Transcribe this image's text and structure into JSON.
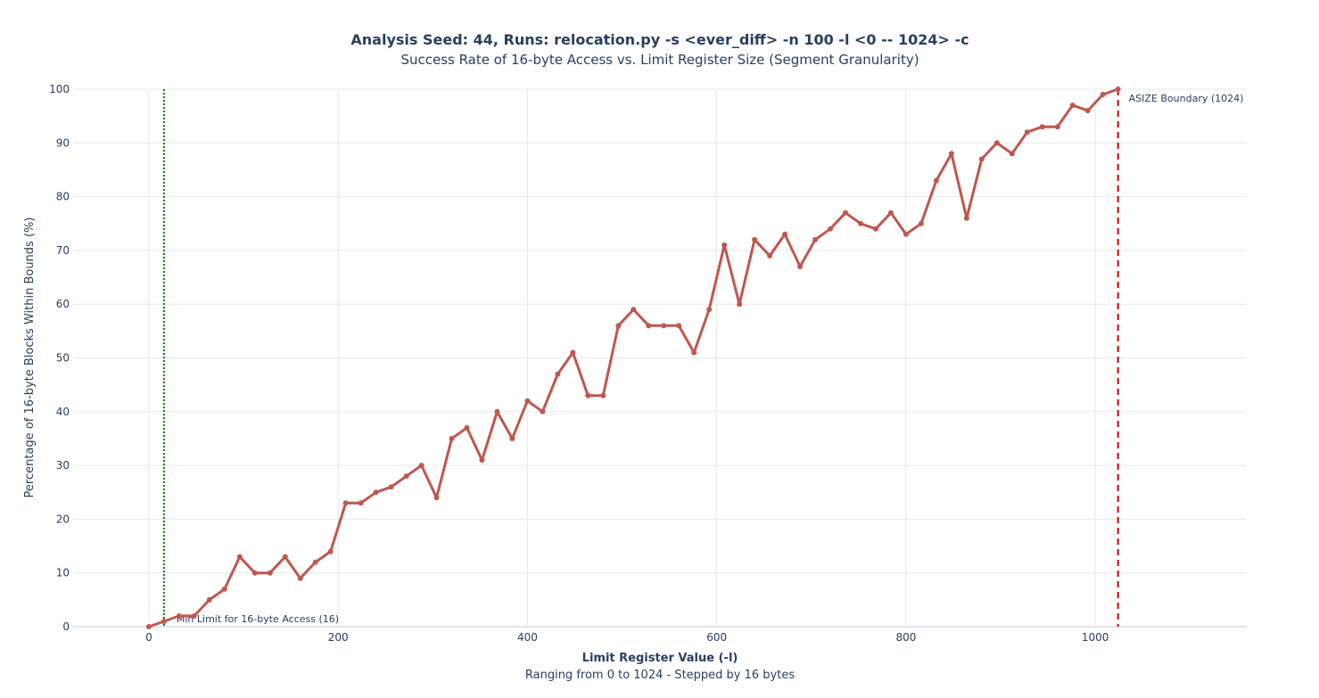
{
  "chart_data": {
    "type": "line",
    "title": "Analysis Seed: 44, Runs: relocation.py -s <ever_diff> -n 100 -l <0 -- 1024> -c",
    "subtitle": "Success Rate of 16-byte Access vs. Limit Register Size (Segment Granularity)",
    "xlabel": "Limit Register Value (-l)",
    "xlabel_sub": "Ranging from 0 to 1024 - Stepped by 16 bytes",
    "ylabel": "Percentage of 16-byte Blocks Within Bounds (%)",
    "xlim": [
      -80,
      1160
    ],
    "ylim": [
      0,
      100
    ],
    "x_ticks": [
      0,
      200,
      400,
      600,
      800,
      1000
    ],
    "y_ticks": [
      0,
      10,
      20,
      30,
      40,
      50,
      60,
      70,
      80,
      90,
      100
    ],
    "grid": true,
    "line_color": "#c0574f",
    "series": [
      {
        "x": [
          0,
          16,
          32,
          48,
          64,
          80,
          96,
          112,
          128,
          144,
          160,
          176,
          192,
          208,
          224,
          240,
          256,
          272,
          288,
          304,
          320,
          336,
          352,
          368,
          384,
          400,
          416,
          432,
          448,
          464,
          480,
          496,
          512,
          528,
          544,
          560,
          576,
          592,
          608,
          624,
          640,
          656,
          672,
          688,
          704,
          720,
          736,
          752,
          768,
          784,
          800,
          816,
          832,
          848,
          864,
          880,
          896,
          912,
          928,
          944,
          960,
          976,
          992,
          1008,
          1024
        ],
        "values": [
          0,
          1,
          2,
          2,
          5,
          7,
          13,
          10,
          10,
          13,
          9,
          12,
          14,
          23,
          23,
          25,
          26,
          28,
          30,
          24,
          35,
          37,
          31,
          40,
          35,
          42,
          40,
          47,
          51,
          43,
          43,
          56,
          59,
          56,
          56,
          56,
          51,
          59,
          71,
          60,
          72,
          69,
          73,
          67,
          72,
          74,
          77,
          75,
          74,
          77,
          73,
          75,
          83,
          88,
          76,
          87,
          90,
          88,
          92,
          93,
          93,
          97,
          96,
          99,
          100
        ]
      }
    ],
    "annotations": [
      {
        "x": 16,
        "label": "Min Limit for 16-byte Access (16)",
        "color": "#008000",
        "style": "dotted"
      },
      {
        "x": 1024,
        "label": "ASIZE Boundary (1024)",
        "color": "#cc0000",
        "style": "dashed"
      }
    ]
  }
}
